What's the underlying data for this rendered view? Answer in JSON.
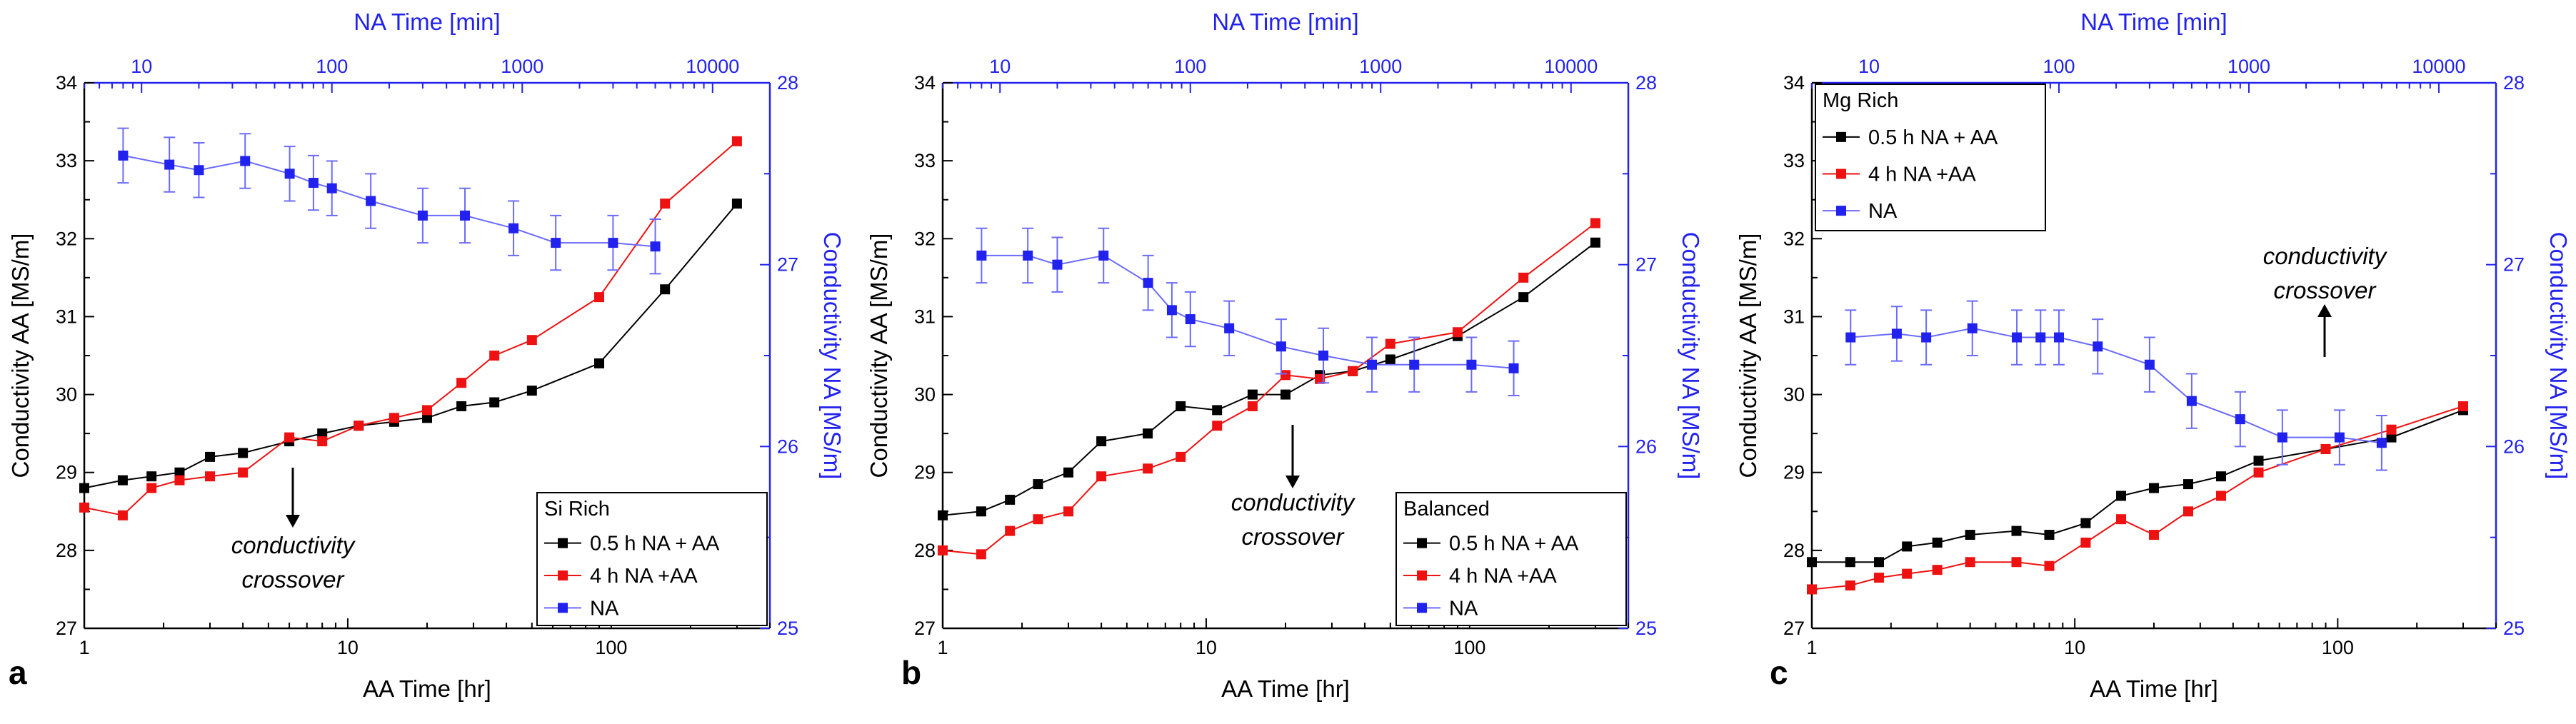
{
  "figure": {
    "panels": [
      "a",
      "b",
      "c"
    ]
  },
  "colors": {
    "aa_axis": "#000000",
    "na_axis": "#2222ee",
    "series_05h": "#000000",
    "series_4h": "#ee1111",
    "series_na": "#2222ee",
    "na_line": "#6b6bff"
  },
  "chart_data": [
    {
      "type": "line",
      "panel_label": "a",
      "title": "",
      "legend_title": "Si Rich",
      "legend_position": "bottom-right",
      "xlabel": "AA Time [hr]",
      "x_top_label": "NA Time [min]",
      "ylabel": "Conductivity AA [MS/m]",
      "y_right_label": "Conductivity NA [MS/m]",
      "x_scale": "log",
      "xlim": [
        1,
        400
      ],
      "ylim": [
        27,
        34
      ],
      "x_top_lim": [
        5,
        20000
      ],
      "y_right_lim": [
        25,
        28
      ],
      "x_ticks": [
        1,
        10,
        100
      ],
      "x_tick_labels": [
        "1",
        "10",
        "100"
      ],
      "y_ticks": [
        27,
        28,
        29,
        30,
        31,
        32,
        33,
        34
      ],
      "y_tick_labels": [
        "27",
        "28",
        "29",
        "30",
        "31",
        "32",
        "33",
        "34"
      ],
      "x_top_ticks": [
        10,
        100,
        1000,
        10000
      ],
      "x_top_tick_labels": [
        "10",
        "100",
        "1000",
        "10000"
      ],
      "y_right_ticks": [
        25,
        26,
        27,
        28
      ],
      "y_right_tick_labels": [
        "25",
        "26",
        "27",
        "28"
      ],
      "series": [
        {
          "name": "0.5 h NA + AA",
          "axis": "aa",
          "x": [
            1,
            1.4,
            1.8,
            2.3,
            3,
            4,
            6,
            8,
            11,
            15,
            20,
            27,
            36,
            50,
            90,
            160,
            300
          ],
          "values": [
            28.8,
            28.9,
            28.95,
            29.0,
            29.2,
            29.25,
            29.4,
            29.5,
            29.6,
            29.65,
            29.7,
            29.85,
            29.9,
            30.05,
            30.4,
            31.35,
            32.45
          ]
        },
        {
          "name": "4 h NA +AA",
          "axis": "aa",
          "x": [
            1,
            1.4,
            1.8,
            2.3,
            3,
            4,
            6,
            8,
            11,
            15,
            20,
            27,
            36,
            50,
            90,
            160,
            300
          ],
          "values": [
            28.55,
            28.45,
            28.8,
            28.9,
            28.95,
            29.0,
            29.45,
            29.4,
            29.6,
            29.7,
            29.8,
            30.15,
            30.5,
            30.7,
            31.25,
            32.45,
            33.25
          ]
        },
        {
          "name": "NA",
          "axis": "na",
          "x_top": [
            8,
            14,
            20,
            35,
            60,
            80,
            100,
            160,
            300,
            500,
            900,
            1500,
            3000,
            5000
          ],
          "values": [
            27.6,
            27.55,
            27.52,
            27.57,
            27.5,
            27.45,
            27.42,
            27.35,
            27.27,
            27.27,
            27.2,
            27.12,
            27.12,
            27.1
          ],
          "errors": [
            0.15,
            0.15,
            0.15,
            0.15,
            0.15,
            0.15,
            0.15,
            0.15,
            0.15,
            0.15,
            0.15,
            0.15,
            0.15,
            0.15
          ]
        }
      ],
      "annotations": [
        {
          "text": [
            "conductivity",
            "crossover"
          ],
          "arrow": "down"
        }
      ]
    },
    {
      "type": "line",
      "panel_label": "b",
      "title": "",
      "legend_title": "Balanced",
      "legend_position": "bottom-right",
      "xlabel": "AA Time [hr]",
      "x_top_label": "NA Time [min]",
      "ylabel": "Conductivity AA [MS/m]",
      "y_right_label": "Conductivity NA [MS/m]",
      "x_scale": "log",
      "xlim": [
        1,
        400
      ],
      "ylim": [
        27,
        34
      ],
      "x_top_lim": [
        5,
        20000
      ],
      "y_right_lim": [
        25,
        28
      ],
      "x_ticks": [
        1,
        10,
        100
      ],
      "x_tick_labels": [
        "1",
        "10",
        "100"
      ],
      "y_ticks": [
        27,
        28,
        29,
        30,
        31,
        32,
        33,
        34
      ],
      "y_tick_labels": [
        "27",
        "28",
        "29",
        "30",
        "31",
        "32",
        "33",
        "34"
      ],
      "x_top_ticks": [
        10,
        100,
        1000,
        10000
      ],
      "x_top_tick_labels": [
        "10",
        "100",
        "1000",
        "10000"
      ],
      "y_right_ticks": [
        25,
        26,
        27,
        28
      ],
      "y_right_tick_labels": [
        "25",
        "26",
        "27",
        "28"
      ],
      "series": [
        {
          "name": "0.5 h NA + AA",
          "axis": "aa",
          "x": [
            1,
            1.4,
            1.8,
            2.3,
            3,
            4,
            6,
            8,
            11,
            15,
            20,
            27,
            36,
            50,
            90,
            160,
            300
          ],
          "values": [
            28.45,
            28.5,
            28.65,
            28.85,
            29.0,
            29.4,
            29.5,
            29.85,
            29.8,
            30.0,
            30.0,
            30.25,
            30.3,
            30.45,
            30.75,
            31.25,
            31.95
          ]
        },
        {
          "name": "4 h NA +AA",
          "axis": "aa",
          "x": [
            1,
            1.4,
            1.8,
            2.3,
            3,
            4,
            6,
            8,
            11,
            15,
            20,
            27,
            36,
            50,
            90,
            160,
            300
          ],
          "values": [
            28.0,
            27.95,
            28.25,
            28.4,
            28.5,
            28.95,
            29.05,
            29.2,
            29.6,
            29.85,
            30.25,
            30.2,
            30.3,
            30.65,
            30.8,
            31.5,
            32.2
          ]
        },
        {
          "name": "NA",
          "axis": "na",
          "x_top": [
            8,
            14,
            20,
            35,
            60,
            80,
            100,
            160,
            300,
            500,
            900,
            1500,
            3000,
            5000
          ],
          "values": [
            27.05,
            27.05,
            27.0,
            27.05,
            26.9,
            26.75,
            26.7,
            26.65,
            26.55,
            26.5,
            26.45,
            26.45,
            26.45,
            26.43
          ],
          "errors": [
            0.15,
            0.15,
            0.15,
            0.15,
            0.15,
            0.15,
            0.15,
            0.15,
            0.15,
            0.15,
            0.15,
            0.15,
            0.15,
            0.15
          ]
        }
      ],
      "annotations": [
        {
          "text": [
            "conductivity",
            "crossover"
          ],
          "arrow": "down"
        }
      ]
    },
    {
      "type": "line",
      "panel_label": "c",
      "title": "",
      "legend_title": "Mg Rich",
      "legend_position": "top-left",
      "xlabel": "AA Time [hr]",
      "x_top_label": "NA Time [min]",
      "ylabel": "Conductivity AA [MS/m]",
      "y_right_label": "Conductivity NA [MS/m]",
      "x_scale": "log",
      "xlim": [
        1,
        400
      ],
      "ylim": [
        27,
        34
      ],
      "x_top_lim": [
        5,
        20000
      ],
      "y_right_lim": [
        25,
        28
      ],
      "x_ticks": [
        1,
        10,
        100
      ],
      "x_tick_labels": [
        "1",
        "10",
        "100"
      ],
      "y_ticks": [
        27,
        28,
        29,
        30,
        31,
        32,
        33,
        34
      ],
      "y_tick_labels": [
        "27",
        "28",
        "29",
        "30",
        "31",
        "32",
        "33",
        "34"
      ],
      "x_top_ticks": [
        10,
        100,
        1000,
        10000
      ],
      "x_top_tick_labels": [
        "10",
        "100",
        "1000",
        "10000"
      ],
      "y_right_ticks": [
        25,
        26,
        27,
        28
      ],
      "y_right_tick_labels": [
        "25",
        "26",
        "27",
        "28"
      ],
      "series": [
        {
          "name": "0.5 h NA + AA",
          "axis": "aa",
          "x": [
            1,
            1.4,
            1.8,
            2.3,
            3,
            4,
            6,
            8,
            11,
            15,
            20,
            27,
            36,
            50,
            90,
            160,
            300
          ],
          "values": [
            27.85,
            27.85,
            27.85,
            28.05,
            28.1,
            28.2,
            28.25,
            28.2,
            28.35,
            28.7,
            28.8,
            28.85,
            28.95,
            29.15,
            29.3,
            29.45,
            29.8
          ]
        },
        {
          "name": "4 h NA +AA",
          "axis": "aa",
          "x": [
            1,
            1.4,
            1.8,
            2.3,
            3,
            4,
            6,
            8,
            11,
            15,
            20,
            27,
            36,
            50,
            90,
            160,
            300
          ],
          "values": [
            27.5,
            27.55,
            27.65,
            27.7,
            27.75,
            27.85,
            27.85,
            27.8,
            28.1,
            28.4,
            28.2,
            28.5,
            28.7,
            29.0,
            29.3,
            29.55,
            29.85
          ]
        },
        {
          "name": "NA",
          "axis": "na",
          "x_top": [
            8,
            14,
            20,
            35,
            60,
            80,
            100,
            160,
            300,
            500,
            900,
            1500,
            3000,
            5000
          ],
          "values": [
            26.6,
            26.62,
            26.6,
            26.65,
            26.6,
            26.6,
            26.6,
            26.55,
            26.45,
            26.25,
            26.15,
            26.05,
            26.05,
            26.02
          ],
          "errors": [
            0.15,
            0.15,
            0.15,
            0.15,
            0.15,
            0.15,
            0.15,
            0.15,
            0.15,
            0.15,
            0.15,
            0.15,
            0.15,
            0.15
          ]
        }
      ],
      "annotations": [
        {
          "text": [
            "conductivity",
            "crossover"
          ],
          "arrow": "up"
        }
      ]
    }
  ]
}
